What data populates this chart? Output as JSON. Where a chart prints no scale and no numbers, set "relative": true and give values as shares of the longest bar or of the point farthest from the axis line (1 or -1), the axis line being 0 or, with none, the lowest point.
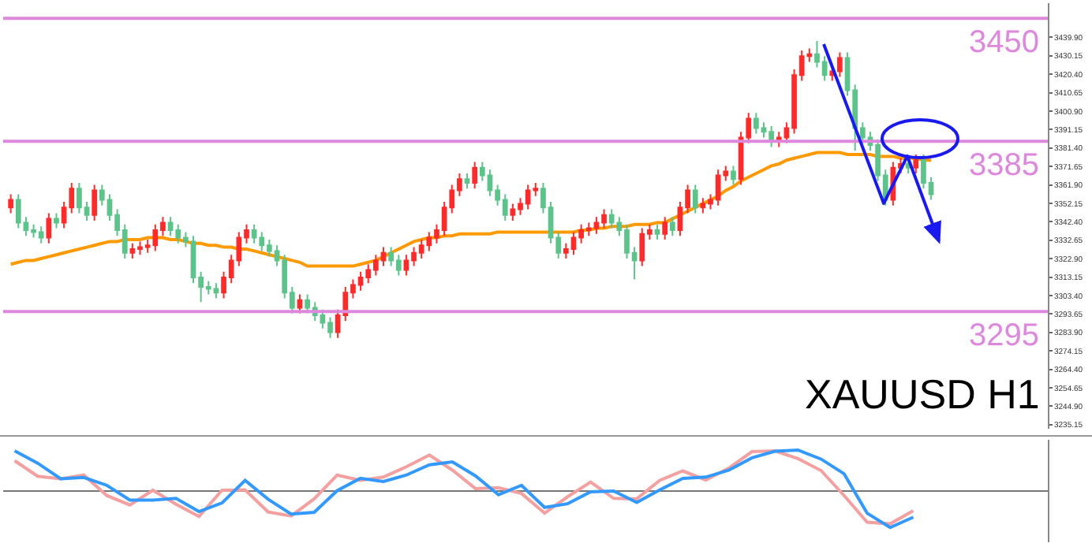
{
  "chart_data": [
    {
      "type": "candlestick",
      "categories": [
        null,
        null,
        null,
        null,
        null,
        null,
        null,
        null,
        null,
        null,
        null,
        null,
        null,
        null,
        null,
        null,
        null,
        null,
        null,
        null,
        null,
        null,
        null,
        null,
        null,
        null,
        null,
        null,
        null,
        null,
        null,
        null,
        null,
        null,
        null,
        null,
        null,
        null,
        null,
        null,
        null,
        null,
        null,
        null,
        null,
        null,
        null,
        null,
        null,
        null,
        null,
        null,
        null,
        null,
        null,
        null,
        null,
        null,
        null,
        null,
        null,
        null,
        null,
        null,
        null,
        null,
        null,
        null,
        null,
        null,
        null,
        null,
        null,
        null,
        null,
        null,
        null,
        null,
        null,
        null,
        null,
        null,
        null,
        null,
        null,
        null,
        null,
        null,
        null,
        null,
        null,
        null,
        null,
        null,
        null,
        null,
        null,
        null,
        null,
        null,
        null,
        null,
        null,
        null,
        null,
        null,
        null,
        null,
        null,
        null,
        null,
        null,
        null,
        null,
        null,
        null,
        null,
        null,
        null,
        null,
        null,
        null
      ],
      "ohlc": [
        [
          3350,
          3357,
          3347,
          3354
        ],
        [
          3354,
          3357,
          3339,
          3342
        ],
        [
          3342,
          3345,
          3335,
          3338
        ],
        [
          3338,
          3341,
          3334,
          3337
        ],
        [
          3337,
          3340,
          3331,
          3334
        ],
        [
          3334,
          3347,
          3331,
          3344
        ],
        [
          3344,
          3347,
          3339,
          3342
        ],
        [
          3342,
          3353,
          3339,
          3350
        ],
        [
          3350,
          3363,
          3347,
          3360
        ],
        [
          3360,
          3363,
          3347,
          3350
        ],
        [
          3350,
          3353,
          3343,
          3346
        ],
        [
          3346,
          3362,
          3343,
          3359
        ],
        [
          3359,
          3362,
          3351,
          3354
        ],
        [
          3354,
          3357,
          3343,
          3346
        ],
        [
          3346,
          3349,
          3335,
          3338
        ],
        [
          3338,
          3341,
          3323,
          3326
        ],
        [
          3326,
          3331,
          3323,
          3328
        ],
        [
          3328,
          3332,
          3325,
          3329
        ],
        [
          3329,
          3333,
          3326,
          3330
        ],
        [
          3330,
          3341,
          3327,
          3338
        ],
        [
          3338,
          3345,
          3335,
          3342
        ],
        [
          3342,
          3345,
          3335,
          3338
        ],
        [
          3338,
          3341,
          3331,
          3334
        ],
        [
          3334,
          3337,
          3329,
          3332
        ],
        [
          3332,
          3335,
          3310,
          3313
        ],
        [
          3313,
          3316,
          3300,
          3308
        ],
        [
          3308,
          3311,
          3304,
          3307
        ],
        [
          3307,
          3310,
          3302,
          3305
        ],
        [
          3305,
          3316,
          3302,
          3313
        ],
        [
          3313,
          3325,
          3310,
          3322
        ],
        [
          3322,
          3337,
          3319,
          3334
        ],
        [
          3334,
          3341,
          3331,
          3338
        ],
        [
          3338,
          3341,
          3331,
          3334
        ],
        [
          3334,
          3337,
          3327,
          3330
        ],
        [
          3330,
          3333,
          3324,
          3327
        ],
        [
          3327,
          3330,
          3319,
          3322
        ],
        [
          3322,
          3325,
          3302,
          3305
        ],
        [
          3305,
          3308,
          3294,
          3297
        ],
        [
          3297,
          3304,
          3294,
          3301
        ],
        [
          3301,
          3304,
          3294,
          3297
        ],
        [
          3297,
          3300,
          3290,
          3293
        ],
        [
          3293,
          3296,
          3286,
          3289
        ],
        [
          3289,
          3292,
          3281,
          3284
        ],
        [
          3284,
          3296,
          3281,
          3293
        ],
        [
          3293,
          3308,
          3290,
          3305
        ],
        [
          3305,
          3312,
          3302,
          3309
        ],
        [
          3309,
          3316,
          3306,
          3313
        ],
        [
          3313,
          3320,
          3310,
          3317
        ],
        [
          3317,
          3325,
          3314,
          3322
        ],
        [
          3322,
          3329,
          3319,
          3326
        ],
        [
          3326,
          3329,
          3319,
          3322
        ],
        [
          3322,
          3325,
          3314,
          3317
        ],
        [
          3317,
          3325,
          3314,
          3322
        ],
        [
          3322,
          3329,
          3319,
          3326
        ],
        [
          3326,
          3333,
          3323,
          3330
        ],
        [
          3330,
          3337,
          3327,
          3334
        ],
        [
          3334,
          3341,
          3331,
          3338
        ],
        [
          3338,
          3353,
          3335,
          3350
        ],
        [
          3350,
          3362,
          3347,
          3359
        ],
        [
          3359,
          3368,
          3356,
          3365
        ],
        [
          3365,
          3368,
          3360,
          3363
        ],
        [
          3363,
          3374,
          3360,
          3371
        ],
        [
          3371,
          3374,
          3364,
          3367
        ],
        [
          3367,
          3370,
          3356,
          3359
        ],
        [
          3359,
          3362,
          3351,
          3354
        ],
        [
          3354,
          3357,
          3343,
          3346
        ],
        [
          3346,
          3352,
          3343,
          3349
        ],
        [
          3349,
          3355,
          3346,
          3352
        ],
        [
          3352,
          3362,
          3349,
          3359
        ],
        [
          3359,
          3363,
          3356,
          3360
        ],
        [
          3360,
          3363,
          3347,
          3350
        ],
        [
          3350,
          3353,
          3331,
          3334
        ],
        [
          3334,
          3337,
          3323,
          3326
        ],
        [
          3326,
          3331,
          3323,
          3328
        ],
        [
          3328,
          3337,
          3325,
          3334
        ],
        [
          3334,
          3341,
          3331,
          3338
        ],
        [
          3338,
          3342,
          3335,
          3339
        ],
        [
          3339,
          3345,
          3336,
          3342
        ],
        [
          3342,
          3349,
          3339,
          3346
        ],
        [
          3346,
          3349,
          3339,
          3342
        ],
        [
          3342,
          3345,
          3335,
          3338
        ],
        [
          3338,
          3341,
          3323,
          3326
        ],
        [
          3326,
          3329,
          3312,
          3322
        ],
        [
          3322,
          3339,
          3319,
          3336
        ],
        [
          3336,
          3341,
          3333,
          3338
        ],
        [
          3338,
          3341,
          3333,
          3336
        ],
        [
          3336,
          3345,
          3333,
          3342
        ],
        [
          3342,
          3345,
          3335,
          3338
        ],
        [
          3338,
          3353,
          3335,
          3350
        ],
        [
          3350,
          3362,
          3347,
          3359
        ],
        [
          3359,
          3362,
          3347,
          3350
        ],
        [
          3350,
          3355,
          3347,
          3352
        ],
        [
          3352,
          3357,
          3349,
          3354
        ],
        [
          3354,
          3370,
          3351,
          3367
        ],
        [
          3367,
          3372,
          3364,
          3369
        ],
        [
          3369,
          3372,
          3362,
          3365
        ],
        [
          3365,
          3390,
          3362,
          3387
        ],
        [
          3387,
          3400,
          3384,
          3397
        ],
        [
          3397,
          3400,
          3389,
          3392
        ],
        [
          3392,
          3395,
          3387,
          3390
        ],
        [
          3390,
          3393,
          3382,
          3385
        ],
        [
          3385,
          3390,
          3382,
          3387
        ],
        [
          3387,
          3395,
          3384,
          3392
        ],
        [
          3392,
          3423,
          3389,
          3420
        ],
        [
          3420,
          3433,
          3417,
          3430
        ],
        [
          3430,
          3434,
          3427,
          3431
        ],
        [
          3431,
          3438,
          3424,
          3427
        ],
        [
          3427,
          3430,
          3417,
          3420
        ],
        [
          3420,
          3425,
          3417,
          3422
        ],
        [
          3422,
          3432,
          3419,
          3429
        ],
        [
          3429,
          3432,
          3409,
          3412
        ],
        [
          3412,
          3415,
          3380,
          3392
        ],
        [
          3392,
          3395,
          3384,
          3387
        ],
        [
          3387,
          3390,
          3380,
          3383
        ],
        [
          3383,
          3386,
          3364,
          3367
        ],
        [
          3367,
          3370,
          3351,
          3354
        ],
        [
          3354,
          3374,
          3351,
          3371
        ],
        [
          3371,
          3376,
          3368,
          3373
        ],
        [
          3373,
          3376,
          3368,
          3371
        ],
        [
          3371,
          3378,
          3368,
          3375
        ],
        [
          3375,
          3378,
          3360,
          3363
        ],
        [
          3363,
          3366,
          3354,
          3357
        ]
      ],
      "series": [
        {
          "type": "line",
          "color": "#ff9900",
          "values": [
            3320,
            3321,
            3322,
            3322,
            3323,
            3324,
            3325,
            3326,
            3327,
            3328,
            3329,
            3330,
            3331,
            3332,
            3332,
            3333,
            3333,
            3333,
            3334,
            3334,
            3334,
            3333,
            3333,
            3332,
            3331,
            3331,
            3330,
            3330,
            3329,
            3329,
            3328,
            3328,
            3327,
            3326,
            3325,
            3324,
            3323,
            3322,
            3321,
            3319,
            3319,
            3319,
            3319,
            3319,
            3319,
            3319,
            3320,
            3321,
            3322,
            3324,
            3326,
            3328,
            3330,
            3332,
            3333,
            3334,
            3334,
            3335,
            3335,
            3336,
            3336,
            3336,
            3336,
            3336,
            3337,
            3337,
            3337,
            3337,
            3337,
            3337,
            3337,
            3337,
            3337,
            3337,
            3337,
            3338,
            3338,
            3339,
            3339,
            3340,
            3340,
            3340,
            3341,
            3341,
            3341,
            3342,
            3342,
            3344,
            3346,
            3348,
            3350,
            3352,
            3354,
            3356,
            3359,
            3361,
            3364,
            3366,
            3368,
            3370,
            3372,
            3373,
            3375,
            3376,
            3377,
            3378,
            3379,
            3379,
            3379,
            3379,
            3378,
            3378,
            3378,
            3378,
            3377,
            3377,
            3377,
            3376,
            3376,
            3376,
            3375,
            3375
          ]
        }
      ],
      "ylim": [
        3233,
        3458
      ],
      "yticks": [
        {
          "value": 3235.15,
          "label": "3235.15"
        },
        {
          "value": 3244.9,
          "label": "3244.90"
        },
        {
          "value": 3254.65,
          "label": "3254.65"
        },
        {
          "value": 3264.4,
          "label": "3264.40"
        },
        {
          "value": 3274.15,
          "label": "3274.15"
        },
        {
          "value": 3283.9,
          "label": "3283.90"
        },
        {
          "value": 3293.65,
          "label": "3293.65"
        },
        {
          "value": 3303.4,
          "label": "3303.40"
        },
        {
          "value": 3313.15,
          "label": "3313.15"
        },
        {
          "value": 3322.9,
          "label": "3322.90"
        },
        {
          "value": 3332.65,
          "label": "3332.65"
        },
        {
          "value": 3342.4,
          "label": "3342.40"
        },
        {
          "value": 3352.15,
          "label": "3352.15"
        },
        {
          "value": 3361.9,
          "label": "3361.90"
        },
        {
          "value": 3371.65,
          "label": "3371.65"
        },
        {
          "value": 3381.4,
          "label": "3381.40"
        },
        {
          "value": 3391.15,
          "label": "3391.15"
        },
        {
          "value": 3400.9,
          "label": "3400.90"
        },
        {
          "value": 3410.65,
          "label": "3410.65"
        },
        {
          "value": 3420.4,
          "label": "3420.40"
        },
        {
          "value": 3430.15,
          "label": "3430.15"
        },
        {
          "value": 3439.9,
          "label": "3439.90"
        }
      ],
      "ref_lines": [
        {
          "axis": "y",
          "value": 3450,
          "label": "3450",
          "color": "#dd88dd"
        },
        {
          "axis": "y",
          "value": 3385,
          "label": "3385",
          "color": "#dd88dd"
        },
        {
          "axis": "y",
          "value": 3295,
          "label": "3295",
          "color": "#dd88dd"
        }
      ],
      "annotations": [
        "XAUUSD H1"
      ],
      "tick_labels": "y",
      "grid": false
    },
    {
      "type": "line",
      "relative": true,
      "categories": [
        null,
        null,
        null,
        null,
        null,
        null,
        null,
        null,
        null,
        null,
        null,
        null,
        null,
        null,
        null,
        null,
        null,
        null,
        null,
        null,
        null,
        null,
        null,
        null,
        null,
        null,
        null,
        null,
        null,
        null,
        null,
        null,
        null,
        null,
        null,
        null,
        null,
        null,
        null,
        null
      ],
      "series": [
        {
          "color": "#f4a0a0",
          "values": [
            0.74,
            0.36,
            0.3,
            0.39,
            -0.11,
            -0.34,
            0.02,
            -0.32,
            -0.62,
            0.02,
            0.03,
            -0.51,
            -0.61,
            -0.19,
            0.39,
            0.26,
            0.34,
            0.59,
            0.88,
            0.51,
            0.06,
            0.08,
            -0.06,
            -0.54,
            -0.14,
            0.22,
            -0.18,
            -0.19,
            0.26,
            0.49,
            0.27,
            0.56,
            0.96,
            0.98,
            0.79,
            0.5,
            -0.11,
            -0.76,
            -0.8,
            -0.48
          ]
        },
        {
          "color": "#3399ff",
          "values": [
            0.98,
            0.68,
            0.3,
            0.33,
            0.14,
            -0.22,
            -0.22,
            -0.18,
            -0.5,
            -0.29,
            0.26,
            -0.2,
            -0.56,
            -0.52,
            0.01,
            0.31,
            0.23,
            0.39,
            0.64,
            0.71,
            0.37,
            -0.09,
            0.14,
            -0.4,
            -0.31,
            -0.02,
            0,
            -0.28,
            0.03,
            0.31,
            0.34,
            0.51,
            0.81,
            0.97,
            1,
            0.78,
            0.42,
            -0.54,
            -0.89,
            -0.64
          ]
        }
      ],
      "tick_labels": false,
      "grid": false
    }
  ]
}
